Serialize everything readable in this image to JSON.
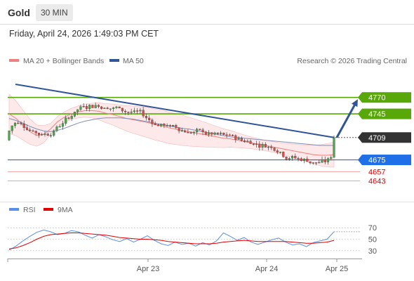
{
  "header": {
    "title": "Gold",
    "timeframe": "30 MIN"
  },
  "timestamp": "Friday, April 24, 2026 1:49:03 PM CET",
  "legend": {
    "ma20": "MA 20 + Bollinger Bands",
    "ma50": "MA 50",
    "credit": "Research © 2026 Trading Central",
    "rsi": "RSI",
    "rsi_ma": "9MA"
  },
  "colors": {
    "ma20": "#f08080",
    "ma50": "#2f5597",
    "band": "#fde4e4",
    "resistance": "#58a80a",
    "support": "#1e6fe8",
    "last": "#333333",
    "target": "#e00000",
    "rsi": "#5b8ee6",
    "rsi_ma": "#e00000",
    "up": "#4ca64c",
    "down": "#e04a4a"
  },
  "price_labels": [
    {
      "value": "4770",
      "kind": "resistance"
    },
    {
      "value": "4745",
      "kind": "resistance"
    },
    {
      "value": "4709",
      "kind": "last"
    },
    {
      "value": "4675",
      "kind": "support"
    },
    {
      "value": "4657",
      "kind": "target"
    },
    {
      "value": "4643",
      "kind": "target"
    }
  ],
  "x_ticks": [
    "Apr 23",
    "Apr 24",
    "Apr 25"
  ],
  "rsi_ticks": [
    "70",
    "50",
    "30"
  ],
  "chart_data": [
    {
      "type": "line",
      "title": "",
      "x_range": [
        "Apr 22",
        "Apr 25"
      ],
      "ylim": [
        4635,
        4790
      ],
      "levels": {
        "resistance": [
          4770,
          4745
        ],
        "last_price": 4709,
        "support": 4675,
        "targets": [
          4657,
          4643
        ]
      },
      "series": [
        {
          "name": "MA 20 + Bollinger Bands",
          "values": [
            4745,
            4738,
            4728,
            4718,
            4712,
            4714,
            4722,
            4733,
            4740,
            4745,
            4748,
            4750,
            4750,
            4749,
            4746,
            4744,
            4741,
            4738,
            4736,
            4734,
            4732,
            4729,
            4727,
            4724,
            4722,
            4720,
            4718,
            4716,
            4714,
            4712,
            4710,
            4708,
            4707,
            4705,
            4703,
            4701,
            4699,
            4697,
            4695,
            4693,
            4691,
            4689,
            4687,
            4685,
            4683,
            4682,
            4682,
            4683
          ]
        },
        {
          "name": "MA 50",
          "values": [
            4738,
            4735,
            4731,
            4726,
            4722,
            4719,
            4718,
            4720,
            4723,
            4727,
            4731,
            4734,
            4736,
            4738,
            4739,
            4739,
            4739,
            4738,
            4737,
            4735,
            4733,
            4731,
            4729,
            4727,
            4725,
            4723,
            4722,
            4720,
            4718,
            4716,
            4714,
            4712,
            4710,
            4709,
            4708,
            4707,
            4706,
            4705,
            4704,
            4703,
            4702,
            4701,
            4700,
            4699,
            4698,
            4697,
            4697,
            4697
          ]
        }
      ],
      "trendline": {
        "from": 4790,
        "to": 4709
      },
      "projection": {
        "from": 4709,
        "to": 4770
      }
    },
    {
      "type": "line",
      "title": "",
      "ylim": [
        20,
        80
      ],
      "yticks": [
        70,
        50,
        30
      ],
      "series": [
        {
          "name": "RSI",
          "values": [
            31,
            38,
            47,
            55,
            62,
            66,
            63,
            58,
            60,
            65,
            63,
            57,
            52,
            58,
            54,
            49,
            46,
            51,
            45,
            50,
            56,
            48,
            42,
            39,
            45,
            41,
            43,
            38,
            44,
            40,
            47,
            61,
            55,
            48,
            53,
            45,
            41,
            45,
            49,
            52,
            45,
            40,
            42,
            37,
            44,
            47,
            50,
            63
          ]
        },
        {
          "name": "9MA",
          "values": [
            33,
            35,
            39,
            44,
            50,
            55,
            58,
            59,
            60,
            61,
            61,
            60,
            59,
            58,
            57,
            55,
            53,
            52,
            51,
            50,
            50,
            49,
            48,
            46,
            45,
            44,
            43,
            42,
            42,
            42,
            43,
            45,
            46,
            47,
            48,
            47,
            46,
            46,
            46,
            46,
            46,
            45,
            44,
            43,
            43,
            44,
            45,
            48
          ]
        }
      ]
    }
  ]
}
